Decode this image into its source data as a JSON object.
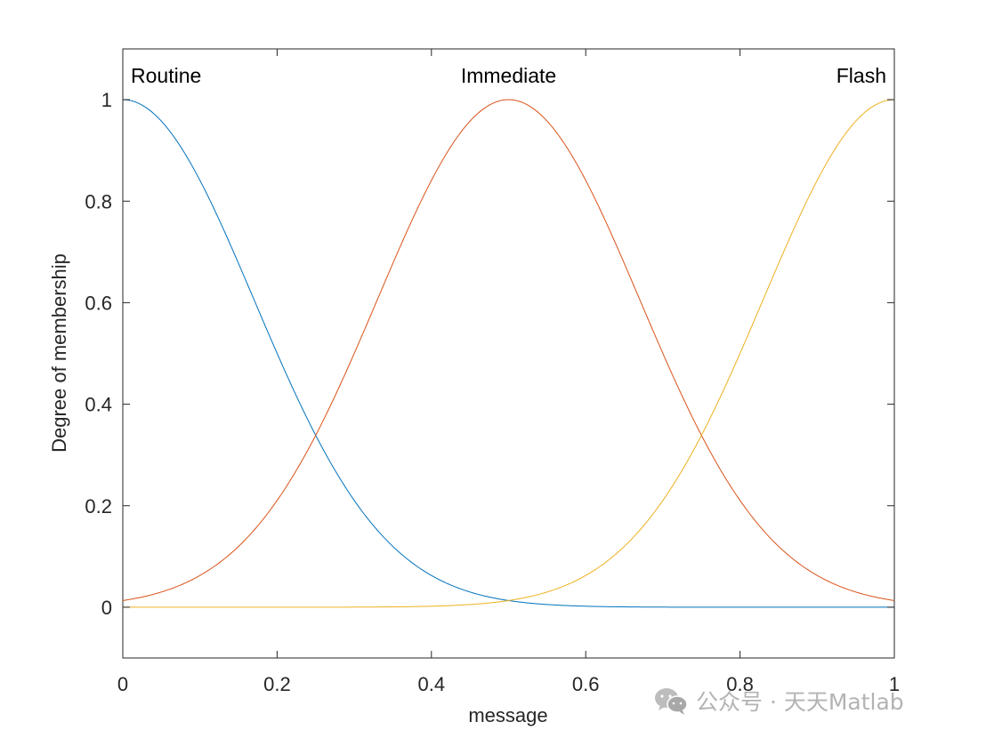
{
  "chart_data": {
    "type": "line",
    "title": "",
    "xlabel": "message",
    "ylabel": "Degree of membership",
    "xlim": [
      0,
      1
    ],
    "ylim": [
      -0.1,
      1.1
    ],
    "xticks": [
      0,
      0.2,
      0.4,
      0.6,
      0.8,
      1
    ],
    "xtick_labels": [
      "0",
      "0.2",
      "0.4",
      "0.6",
      "0.8",
      "1"
    ],
    "yticks": [
      0,
      0.2,
      0.4,
      0.6,
      0.8,
      1
    ],
    "ytick_labels": [
      "0",
      "0.2",
      "0.4",
      "0.6",
      "0.8",
      "1"
    ],
    "grid": false,
    "series": [
      {
        "name": "Routine",
        "mf": "gaussmf",
        "sigma": 0.1699,
        "center": 0,
        "color": "#0072BD"
      },
      {
        "name": "Immediate",
        "mf": "gaussmf",
        "sigma": 0.1699,
        "center": 0.5,
        "color": "#D95319"
      },
      {
        "name": "Flash",
        "mf": "gaussmf",
        "sigma": 0.1699,
        "center": 1,
        "color": "#EDB120"
      }
    ]
  },
  "watermark": {
    "text": "公众号 · 天天Matlab",
    "icon": "wechat-icon"
  }
}
